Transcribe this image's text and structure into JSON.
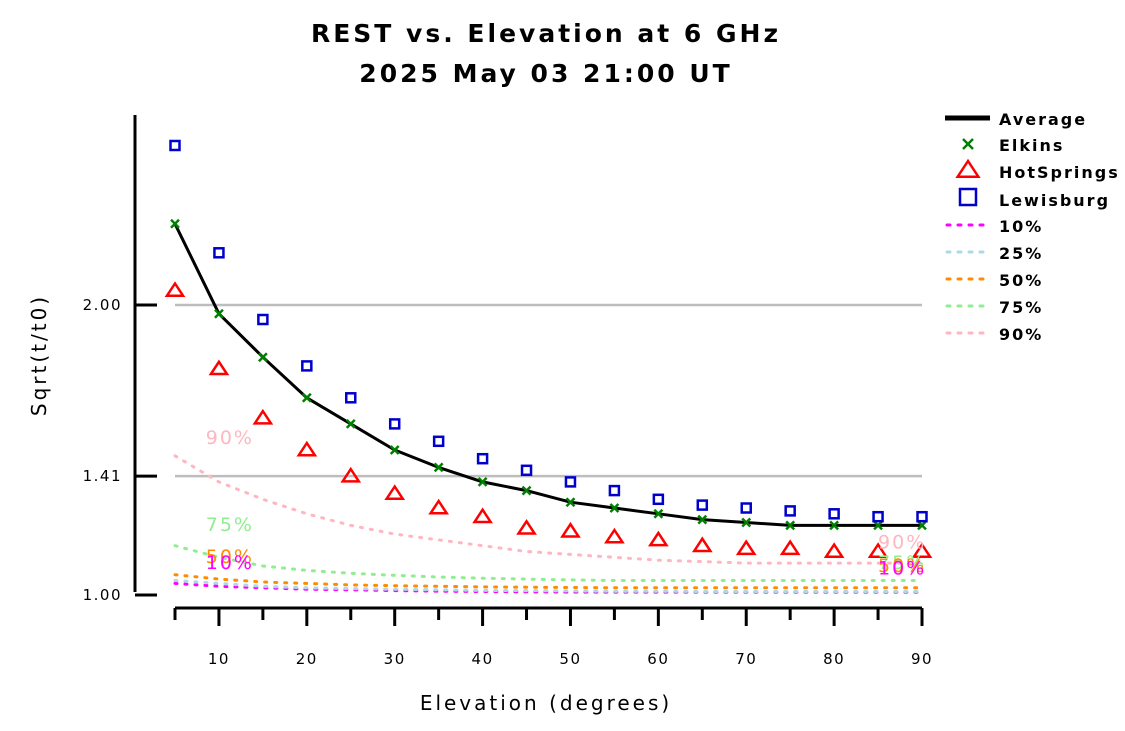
{
  "chart_data": {
    "type": "scatter",
    "title": "REST vs. Elevation at 6 GHz",
    "subtitle": "2025 May 03 21:00 UT",
    "xlabel": "Elevation (degrees)",
    "ylabel": "Sqrt(t/t0)",
    "xlim": [
      5,
      90
    ],
    "ylim": [
      1.0,
      2.6
    ],
    "xticks": [
      10,
      20,
      30,
      40,
      50,
      60,
      70,
      80,
      90
    ],
    "yticks": [
      {
        "value": 1.0,
        "label": "1.00"
      },
      {
        "value": 1.41,
        "label": "1.41"
      },
      {
        "value": 2.0,
        "label": "2.00"
      }
    ],
    "gridlines": [
      1.41,
      2.0
    ],
    "legend_position": "right",
    "x": [
      5,
      10,
      15,
      20,
      25,
      30,
      35,
      40,
      45,
      50,
      55,
      60,
      65,
      70,
      75,
      80,
      85,
      90
    ],
    "series": [
      {
        "name": "Average",
        "kind": "line",
        "color": "#000000",
        "values": [
          2.28,
          1.97,
          1.82,
          1.68,
          1.59,
          1.5,
          1.44,
          1.39,
          1.36,
          1.32,
          1.3,
          1.28,
          1.26,
          1.25,
          1.24,
          1.24,
          1.24,
          1.24
        ]
      },
      {
        "name": "Elkins",
        "kind": "x",
        "color": "#008000",
        "values": [
          2.28,
          1.97,
          1.82,
          1.68,
          1.59,
          1.5,
          1.44,
          1.39,
          1.36,
          1.32,
          1.3,
          1.28,
          1.26,
          1.25,
          1.24,
          1.24,
          1.24,
          1.24
        ]
      },
      {
        "name": "HotSprings",
        "kind": "triangle",
        "color": "#ff0000",
        "values": [
          2.05,
          1.78,
          1.61,
          1.5,
          1.41,
          1.35,
          1.3,
          1.27,
          1.23,
          1.22,
          1.2,
          1.19,
          1.17,
          1.16,
          1.16,
          1.15,
          1.15,
          1.15
        ]
      },
      {
        "name": "Lewisburg",
        "kind": "square",
        "color": "#0000cc",
        "values": [
          2.55,
          2.18,
          1.95,
          1.79,
          1.68,
          1.59,
          1.53,
          1.47,
          1.43,
          1.39,
          1.36,
          1.33,
          1.31,
          1.3,
          1.29,
          1.28,
          1.27,
          1.27
        ]
      },
      {
        "name": "10%",
        "kind": "dotted",
        "color": "#ff00ff",
        "values": [
          1.04,
          1.03,
          1.025,
          1.02,
          1.018,
          1.015,
          1.013,
          1.012,
          1.011,
          1.01,
          1.01,
          1.01,
          1.01,
          1.01,
          1.01,
          1.01,
          1.01,
          1.01
        ]
      },
      {
        "name": "25%",
        "kind": "dotted",
        "color": "#add8e6",
        "values": [
          1.05,
          1.04,
          1.03,
          1.025,
          1.022,
          1.02,
          1.018,
          1.016,
          1.015,
          1.014,
          1.013,
          1.013,
          1.012,
          1.012,
          1.012,
          1.012,
          1.012,
          1.012
        ]
      },
      {
        "name": "50%",
        "kind": "dotted",
        "color": "#ff8c00",
        "values": [
          1.07,
          1.055,
          1.045,
          1.04,
          1.035,
          1.032,
          1.03,
          1.028,
          1.027,
          1.026,
          1.025,
          1.025,
          1.025,
          1.025,
          1.025,
          1.025,
          1.025,
          1.025
        ]
      },
      {
        "name": "75%",
        "kind": "dotted",
        "color": "#90ee90",
        "values": [
          1.17,
          1.13,
          1.1,
          1.085,
          1.075,
          1.068,
          1.062,
          1.058,
          1.055,
          1.052,
          1.05,
          1.05,
          1.05,
          1.05,
          1.05,
          1.05,
          1.05,
          1.05
        ]
      },
      {
        "name": "90%",
        "kind": "dotted",
        "color": "#ffb6c1",
        "values": [
          1.48,
          1.39,
          1.33,
          1.28,
          1.24,
          1.21,
          1.19,
          1.17,
          1.15,
          1.14,
          1.13,
          1.12,
          1.115,
          1.11,
          1.11,
          1.11,
          1.11,
          1.11
        ]
      }
    ],
    "annotations": [
      {
        "text": "90%",
        "color": "#ffb6c1",
        "x": 8.5,
        "y": 1.52
      },
      {
        "text": "75%",
        "color": "#90ee90",
        "x": 8.5,
        "y": 1.22
      },
      {
        "text": "50%",
        "color": "#ff8c00",
        "x": 8.5,
        "y": 1.11
      },
      {
        "text": "10%",
        "color": "#ff00ff",
        "x": 8.5,
        "y": 1.09
      },
      {
        "text": "90%",
        "color": "#ffb6c1",
        "x": 85,
        "y": 1.16
      },
      {
        "text": "75%",
        "color": "#90ee90",
        "x": 85,
        "y": 1.09
      },
      {
        "text": "50%",
        "color": "#ff8c00",
        "x": 85,
        "y": 1.08
      },
      {
        "text": "10%",
        "color": "#ff00ff",
        "x": 85,
        "y": 1.07
      }
    ]
  }
}
